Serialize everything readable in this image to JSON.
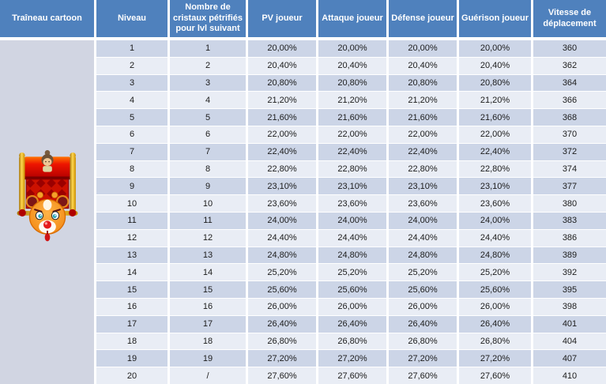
{
  "colors": {
    "header_bg": "#4f81bd",
    "header_text": "#ffffff",
    "row_dark": "#ccd5e7",
    "row_light": "#e9edf5",
    "side_col": "#d1d5e2",
    "grid_gap": "#ffffff",
    "body_text": "#1c1c1c",
    "sled_red": "#cc1100",
    "sled_gold": "#eaa61c",
    "reindeer_orange": "#f5921e"
  },
  "icons": {
    "sled": "cartoon-sled-with-reindeer-and-child-icon"
  },
  "table": {
    "headers": [
      {
        "label": "Traîneau cartoon"
      },
      {
        "label": "Niveau"
      },
      {
        "label": "Nombre de cristaux pétrifiés pour lvl suivant"
      },
      {
        "label": "PV joueur"
      },
      {
        "label": "Attaque joueur"
      },
      {
        "label": "Défense joueur"
      },
      {
        "label": "Guérison joueur"
      },
      {
        "label": "Vitesse de déplacement"
      }
    ],
    "column_keys": [
      "niveau",
      "cristaux",
      "pv",
      "attaque",
      "defense",
      "guerison",
      "vitesse"
    ],
    "rows": [
      [
        "1",
        "1",
        "20,00%",
        "20,00%",
        "20,00%",
        "20,00%",
        "360"
      ],
      [
        "2",
        "2",
        "20,40%",
        "20,40%",
        "20,40%",
        "20,40%",
        "362"
      ],
      [
        "3",
        "3",
        "20,80%",
        "20,80%",
        "20,80%",
        "20,80%",
        "364"
      ],
      [
        "4",
        "4",
        "21,20%",
        "21,20%",
        "21,20%",
        "21,20%",
        "366"
      ],
      [
        "5",
        "5",
        "21,60%",
        "21,60%",
        "21,60%",
        "21,60%",
        "368"
      ],
      [
        "6",
        "6",
        "22,00%",
        "22,00%",
        "22,00%",
        "22,00%",
        "370"
      ],
      [
        "7",
        "7",
        "22,40%",
        "22,40%",
        "22,40%",
        "22,40%",
        "372"
      ],
      [
        "8",
        "8",
        "22,80%",
        "22,80%",
        "22,80%",
        "22,80%",
        "374"
      ],
      [
        "9",
        "9",
        "23,10%",
        "23,10%",
        "23,10%",
        "23,10%",
        "377"
      ],
      [
        "10",
        "10",
        "23,60%",
        "23,60%",
        "23,60%",
        "23,60%",
        "380"
      ],
      [
        "11",
        "11",
        "24,00%",
        "24,00%",
        "24,00%",
        "24,00%",
        "383"
      ],
      [
        "12",
        "12",
        "24,40%",
        "24,40%",
        "24,40%",
        "24,40%",
        "386"
      ],
      [
        "13",
        "13",
        "24,80%",
        "24,80%",
        "24,80%",
        "24,80%",
        "389"
      ],
      [
        "14",
        "14",
        "25,20%",
        "25,20%",
        "25,20%",
        "25,20%",
        "392"
      ],
      [
        "15",
        "15",
        "25,60%",
        "25,60%",
        "25,60%",
        "25,60%",
        "395"
      ],
      [
        "16",
        "16",
        "26,00%",
        "26,00%",
        "26,00%",
        "26,00%",
        "398"
      ],
      [
        "17",
        "17",
        "26,40%",
        "26,40%",
        "26,40%",
        "26,40%",
        "401"
      ],
      [
        "18",
        "18",
        "26,80%",
        "26,80%",
        "26,80%",
        "26,80%",
        "404"
      ],
      [
        "19",
        "19",
        "27,20%",
        "27,20%",
        "27,20%",
        "27,20%",
        "407"
      ],
      [
        "20",
        "/",
        "27,60%",
        "27,60%",
        "27,60%",
        "27,60%",
        "410"
      ]
    ]
  }
}
